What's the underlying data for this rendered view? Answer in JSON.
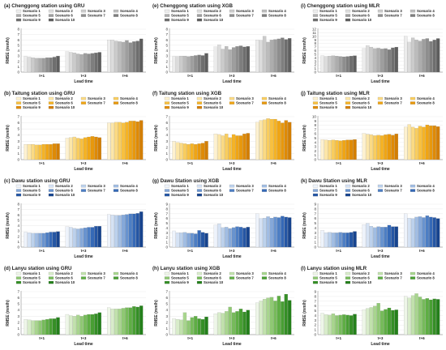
{
  "xlabel": "Lead time",
  "ylabel": "RMSE (mm/h)",
  "legend_names": [
    "Scenario 1",
    "Scenario 2",
    "Scenario 3",
    "Scenario 4",
    "Scenario 5",
    "Scenario 6",
    "Scenario 7",
    "Scenario 8",
    "Scenario 9",
    "Scenario 10"
  ],
  "palettes": {
    "gray": [
      "#ececec",
      "#dcdcdc",
      "#cbcbcb",
      "#bcbcbc",
      "#adadad",
      "#9e9e9e",
      "#8e8e8e",
      "#7e7e7e",
      "#6e6e6e",
      "#5e5e5e"
    ],
    "orange": [
      "#fdf1d0",
      "#fce6a8",
      "#fbda83",
      "#f9cd5e",
      "#f8c03f",
      "#f5b325",
      "#f0a514",
      "#e8980c",
      "#df8a06",
      "#d37e02"
    ],
    "blue": [
      "#eef3fb",
      "#d5e2f4",
      "#bcd1ec",
      "#a1bde3",
      "#85a8d9",
      "#6893cf",
      "#4d7ec4",
      "#3569b7",
      "#2556a4",
      "#17448e"
    ],
    "green": [
      "#eef6e8",
      "#d8ecca",
      "#c1e1ac",
      "#a8d58e",
      "#8fc873",
      "#76bb5a",
      "#5eae44",
      "#489f33",
      "#358f26",
      "#24801b"
    ]
  },
  "chart_data": [
    {
      "type": "bar",
      "title": "(a) Chenggong station using GRU",
      "palette": "gray",
      "ylim": [
        0,
        8
      ],
      "yticks": [
        0,
        1,
        2,
        3,
        4,
        5,
        6,
        7,
        8
      ],
      "categories": [
        "t+1",
        "t+3",
        "t+6"
      ],
      "values": [
        [
          2.9,
          2.8,
          2.7,
          2.6,
          2.6,
          2.6,
          2.7,
          2.7,
          2.8,
          3.0
        ],
        [
          3.8,
          3.7,
          3.6,
          3.4,
          3.3,
          3.5,
          3.4,
          3.5,
          3.6,
          3.7
        ],
        [
          6.0,
          6.0,
          5.8,
          5.7,
          5.6,
          5.9,
          5.5,
          5.7,
          5.8,
          6.2
        ]
      ]
    },
    {
      "type": "bar",
      "title": "(e) Chenggong station using XGB",
      "palette": "gray",
      "ylim": [
        0,
        8
      ],
      "yticks": [
        0,
        1,
        2,
        3,
        4,
        5,
        6,
        7,
        8
      ],
      "categories": [
        "t+1",
        "t+3",
        "t+6"
      ],
      "values": [
        [
          2.9,
          2.9,
          3.0,
          3.0,
          2.9,
          3.0,
          3.1,
          3.2,
          3.1,
          3.5
        ],
        [
          4.7,
          5.1,
          4.3,
          4.8,
          4.2,
          4.6,
          4.8,
          4.9,
          4.7,
          4.8
        ],
        [
          6.0,
          5.9,
          6.7,
          5.6,
          6.0,
          6.1,
          6.2,
          6.4,
          6.1,
          6.3
        ]
      ]
    },
    {
      "type": "bar",
      "title": "(i) Chenggong station using MLR",
      "palette": "gray",
      "ylim": [
        0,
        12
      ],
      "yticks": [
        0,
        1,
        2,
        3,
        4,
        5,
        6,
        7,
        8,
        9,
        10,
        11,
        12
      ],
      "categories": [
        "t+1",
        "t+3",
        "t+6"
      ],
      "values": [
        [
          4.6,
          4.4,
          4.5,
          4.6,
          4.5,
          4.4,
          4.3,
          4.4,
          4.5,
          4.6
        ],
        [
          6.6,
          7.4,
          7.0,
          6.6,
          6.7,
          6.5,
          6.6,
          6.3,
          6.8,
          7.0
        ],
        [
          10.0,
          8.4,
          9.6,
          9.0,
          8.7,
          9.2,
          9.4,
          8.6,
          9.0,
          9.4
        ]
      ]
    },
    {
      "type": "bar",
      "title": "(b) Taitung station using GRU",
      "palette": "orange",
      "ylim": [
        0,
        7
      ],
      "yticks": [
        0,
        1,
        2,
        3,
        4,
        5,
        6,
        7
      ],
      "categories": [
        "t+1",
        "t+3",
        "t+6"
      ],
      "values": [
        [
          2.5,
          2.5,
          2.5,
          2.4,
          2.4,
          2.5,
          2.5,
          2.5,
          2.6,
          2.6
        ],
        [
          3.5,
          3.6,
          3.7,
          3.5,
          3.4,
          3.6,
          3.7,
          3.8,
          3.7,
          3.6
        ],
        [
          6.0,
          6.0,
          6.1,
          6.1,
          6.0,
          6.1,
          6.3,
          6.3,
          6.2,
          6.4
        ]
      ]
    },
    {
      "type": "bar",
      "title": "(f) Taitung station using XGB",
      "palette": "orange",
      "ylim": [
        0,
        7
      ],
      "yticks": [
        0,
        1,
        2,
        3,
        4,
        5,
        6,
        7
      ],
      "categories": [
        "t+1",
        "t+3",
        "t+6"
      ],
      "values": [
        [
          3.0,
          2.8,
          2.7,
          2.6,
          2.5,
          2.6,
          2.5,
          2.6,
          2.7,
          3.0
        ],
        [
          4.2,
          4.1,
          3.9,
          4.2,
          3.6,
          4.1,
          3.9,
          3.9,
          4.2,
          4.3
        ],
        [
          6.1,
          6.4,
          6.5,
          6.7,
          6.6,
          6.6,
          6.3,
          6.0,
          6.4,
          6.1
        ]
      ]
    },
    {
      "type": "bar",
      "title": "(j) Taitung station using MLR",
      "palette": "orange",
      "ylim": [
        0,
        10
      ],
      "yticks": [
        0,
        1,
        2,
        3,
        4,
        5,
        6,
        7,
        8,
        9,
        10
      ],
      "categories": [
        "t+1",
        "t+3",
        "t+6"
      ],
      "values": [
        [
          4.7,
          4.6,
          4.5,
          4.6,
          4.5,
          4.4,
          4.5,
          4.6,
          4.6,
          4.7
        ],
        [
          6.1,
          5.9,
          5.8,
          5.6,
          5.7,
          5.6,
          5.8,
          5.9,
          5.7,
          6.0
        ],
        [
          7.6,
          8.2,
          7.6,
          7.3,
          7.8,
          7.6,
          8.1,
          7.9,
          7.9,
          7.7
        ]
      ]
    },
    {
      "type": "bar",
      "title": "(c) Dawu station using GRU",
      "palette": "blue",
      "ylim": [
        0,
        8
      ],
      "yticks": [
        0,
        1,
        2,
        3,
        4,
        5,
        6,
        7,
        8
      ],
      "categories": [
        "t+1",
        "t+3",
        "t+6"
      ],
      "values": [
        [
          2.8,
          2.7,
          2.6,
          2.6,
          2.6,
          2.6,
          2.7,
          2.8,
          2.8,
          2.9
        ],
        [
          3.8,
          3.7,
          3.5,
          3.4,
          3.5,
          3.6,
          3.7,
          3.7,
          3.9,
          3.9
        ],
        [
          6.1,
          6.0,
          5.9,
          5.9,
          6.0,
          6.1,
          6.2,
          6.2,
          6.3,
          6.6
        ]
      ]
    },
    {
      "type": "bar",
      "title": "(g) Dawu Station using XGB",
      "palette": "blue",
      "ylim": [
        0,
        9
      ],
      "yticks": [
        0,
        1,
        2,
        3,
        4,
        5,
        6,
        7,
        8,
        9
      ],
      "categories": [
        "t+1",
        "t+3",
        "t+6"
      ],
      "values": [
        [
          3.4,
          3.0,
          3.0,
          3.1,
          2.9,
          2.9,
          2.8,
          3.5,
          3.1,
          2.9
        ],
        [
          4.6,
          4.9,
          4.1,
          4.2,
          3.9,
          4.1,
          4.3,
          4.2,
          4.0,
          4.2
        ],
        [
          7.0,
          6.0,
          6.1,
          6.4,
          6.1,
          6.3,
          6.2,
          6.5,
          6.3,
          6.2
        ]
      ]
    },
    {
      "type": "bar",
      "title": "(k) Dawu Station using MLR",
      "palette": "blue",
      "ylim": [
        0,
        9
      ],
      "yticks": [
        0,
        1,
        2,
        3,
        4,
        5,
        6,
        7,
        8,
        9
      ],
      "categories": [
        "t+1",
        "t+3",
        "t+6"
      ],
      "values": [
        [
          3.5,
          3.0,
          3.1,
          3.0,
          3.0,
          3.1,
          3.0,
          3.0,
          3.1,
          3.3
        ],
        [
          4.7,
          5.0,
          4.4,
          4.1,
          4.3,
          4.2,
          4.2,
          4.6,
          4.3,
          4.3
        ],
        [
          7.0,
          6.1,
          6.0,
          6.3,
          6.4,
          6.2,
          6.6,
          6.3,
          6.2,
          6.0
        ]
      ]
    },
    {
      "type": "bar",
      "title": "(d) Lanyu station using GRU",
      "palette": "green",
      "ylim": [
        0,
        7
      ],
      "yticks": [
        0,
        1,
        2,
        3,
        4,
        5,
        6,
        7
      ],
      "categories": [
        "t+1",
        "t+3",
        "t+6"
      ],
      "values": [
        [
          2.5,
          2.4,
          2.3,
          2.3,
          2.3,
          2.4,
          2.5,
          2.6,
          2.6,
          2.8
        ],
        [
          3.3,
          3.1,
          3.0,
          3.2,
          3.0,
          3.2,
          3.3,
          3.3,
          3.4,
          3.6
        ],
        [
          4.4,
          4.2,
          4.2,
          4.2,
          4.3,
          4.4,
          4.4,
          4.6,
          4.5,
          4.7
        ]
      ]
    },
    {
      "type": "bar",
      "title": "(h) Lanyu station using XGB",
      "palette": "green",
      "ylim": [
        0,
        7
      ],
      "yticks": [
        0,
        1,
        2,
        3,
        4,
        5,
        6,
        7
      ],
      "categories": [
        "t+1",
        "t+3",
        "t+6"
      ],
      "values": [
        [
          2.6,
          2.5,
          2.4,
          3.6,
          2.3,
          2.8,
          3.0,
          2.6,
          2.5,
          2.9
        ],
        [
          3.4,
          3.6,
          3.5,
          3.8,
          4.5,
          3.6,
          3.8,
          4.2,
          3.7,
          4.0
        ],
        [
          5.2,
          5.5,
          5.8,
          6.0,
          6.1,
          5.5,
          6.3,
          5.4,
          6.6,
          5.6
        ]
      ]
    },
    {
      "type": "bar",
      "title": "(l) Lanyu station using MLR",
      "palette": "green",
      "ylim": [
        0,
        9
      ],
      "yticks": [
        0,
        1,
        2,
        3,
        4,
        5,
        6,
        7,
        8,
        9
      ],
      "categories": [
        "t+1",
        "t+3",
        "t+6"
      ],
      "values": [
        [
          4.5,
          4.2,
          4.1,
          4.4,
          4.0,
          4.1,
          4.2,
          4.1,
          4.0,
          4.3
        ],
        [
          5.2,
          5.5,
          5.7,
          6.0,
          6.6,
          5.0,
          5.3,
          5.6,
          5.1,
          5.2
        ],
        [
          8.0,
          7.7,
          8.2,
          8.6,
          7.9,
          7.4,
          7.6,
          7.3,
          7.5,
          7.4
        ]
      ]
    }
  ]
}
